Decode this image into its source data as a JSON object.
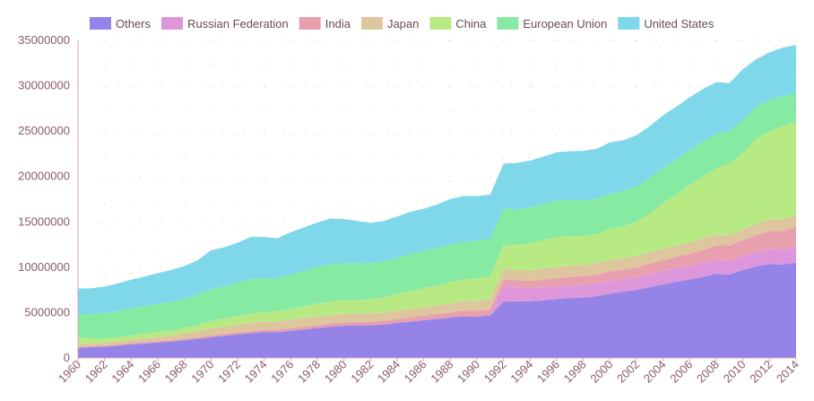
{
  "chart_data": {
    "type": "area",
    "stacked": true,
    "legend_position": "top",
    "grid": true,
    "ylim": [
      0,
      35000000
    ],
    "y_ticks": [
      0,
      5000000,
      10000000,
      15000000,
      20000000,
      25000000,
      30000000,
      35000000
    ],
    "x_tick_labels": [
      "1960",
      "1962",
      "1964",
      "1966",
      "1968",
      "1970",
      "1972",
      "1974",
      "1976",
      "1978",
      "1980",
      "1982",
      "1984",
      "1986",
      "1988",
      "1990",
      "1992",
      "1994",
      "1996",
      "1998",
      "2000",
      "2002",
      "2004",
      "2006",
      "2008",
      "2010",
      "2012",
      "2014"
    ],
    "x": [
      1960,
      1961,
      1962,
      1963,
      1964,
      1965,
      1966,
      1967,
      1968,
      1969,
      1970,
      1971,
      1972,
      1973,
      1974,
      1975,
      1976,
      1977,
      1978,
      1979,
      1980,
      1981,
      1982,
      1983,
      1984,
      1985,
      1986,
      1987,
      1988,
      1989,
      1990,
      1991,
      1992,
      1993,
      1994,
      1995,
      1996,
      1997,
      1998,
      1999,
      2000,
      2001,
      2002,
      2003,
      2004,
      2005,
      2006,
      2007,
      2008,
      2009,
      2010,
      2011,
      2012,
      2013,
      2014
    ],
    "series": [
      {
        "name": "Others",
        "color": "#9583e8",
        "pattern": false,
        "values": [
          1100000,
          1200000,
          1250000,
          1350000,
          1500000,
          1600000,
          1700000,
          1800000,
          1950000,
          2100000,
          2300000,
          2450000,
          2600000,
          2750000,
          2850000,
          2850000,
          3000000,
          3150000,
          3300000,
          3450000,
          3550000,
          3600000,
          3600000,
          3700000,
          3850000,
          4000000,
          4150000,
          4300000,
          4450000,
          4600000,
          4550000,
          4700000,
          6200000,
          6250000,
          6250000,
          6350000,
          6500000,
          6600000,
          6650000,
          6800000,
          7100000,
          7300000,
          7500000,
          7800000,
          8100000,
          8400000,
          8650000,
          8950000,
          9300000,
          9200000,
          9700000,
          10100000,
          10350000,
          10300000,
          10500000
        ]
      },
      {
        "name": "Russian Federation",
        "color": "#d98ad6",
        "pattern": true,
        "values": [
          0,
          0,
          0,
          0,
          0,
          0,
          0,
          0,
          0,
          0,
          0,
          0,
          0,
          0,
          0,
          0,
          0,
          0,
          0,
          0,
          0,
          0,
          0,
          0,
          0,
          0,
          0,
          0,
          0,
          0,
          0,
          0,
          1750000,
          1550000,
          1450000,
          1450000,
          1400000,
          1400000,
          1400000,
          1400000,
          1400000,
          1400000,
          1400000,
          1450000,
          1500000,
          1500000,
          1500000,
          1550000,
          1550000,
          1500000,
          1550000,
          1600000,
          1650000,
          1650000,
          1700000
        ]
      },
      {
        "name": "India",
        "color": "#e8a0ae",
        "pattern": false,
        "values": [
          100000,
          110000,
          120000,
          130000,
          140000,
          150000,
          160000,
          170000,
          180000,
          190000,
          200000,
          210000,
          220000,
          230000,
          250000,
          270000,
          290000,
          300000,
          310000,
          330000,
          350000,
          370000,
          390000,
          410000,
          440000,
          470000,
          500000,
          530000,
          560000,
          600000,
          650000,
          690000,
          720000,
          760000,
          800000,
          850000,
          900000,
          940000,
          980000,
          1000000,
          1030000,
          1050000,
          1080000,
          1120000,
          1180000,
          1240000,
          1320000,
          1420000,
          1550000,
          1720000,
          1750000,
          1850000,
          2000000,
          2050000,
          2200000
        ]
      },
      {
        "name": "Japan",
        "color": "#d9bf92",
        "pattern": true,
        "values": [
          250000,
          270000,
          300000,
          340000,
          390000,
          420000,
          450000,
          520000,
          600000,
          680000,
          760000,
          790000,
          830000,
          900000,
          930000,
          880000,
          920000,
          950000,
          970000,
          930000,
          950000,
          930000,
          900000,
          880000,
          950000,
          940000,
          940000,
          930000,
          1000000,
          1050000,
          1100000,
          1120000,
          1150000,
          1130000,
          1150000,
          1200000,
          1220000,
          1240000,
          1200000,
          1250000,
          1270000,
          1240000,
          1260000,
          1270000,
          1270000,
          1260000,
          1250000,
          1270000,
          1200000,
          1120000,
          1180000,
          1220000,
          1280000,
          1300000,
          1250000
        ]
      },
      {
        "name": "China",
        "color": "#b8ea84",
        "pattern": false,
        "values": [
          800000,
          550000,
          450000,
          450000,
          450000,
          500000,
          550000,
          550000,
          550000,
          650000,
          800000,
          900000,
          950000,
          1000000,
          1000000,
          1150000,
          1150000,
          1300000,
          1450000,
          1500000,
          1500000,
          1450000,
          1600000,
          1700000,
          1800000,
          1950000,
          2100000,
          2200000,
          2350000,
          2400000,
          2450000,
          2550000,
          2650000,
          2750000,
          2950000,
          3150000,
          3300000,
          3250000,
          3200000,
          3200000,
          3400000,
          3500000,
          3800000,
          4300000,
          5000000,
          5600000,
          6300000,
          6800000,
          7300000,
          7900000,
          8400000,
          9400000,
          9700000,
          10200000,
          10300000
        ]
      },
      {
        "name": "European Union",
        "color": "#86eaa2",
        "pattern": false,
        "values": [
          2600000,
          2700000,
          2800000,
          2900000,
          3000000,
          3050000,
          3100000,
          3150000,
          3200000,
          3350000,
          3500000,
          3550000,
          3650000,
          3800000,
          3750000,
          3650000,
          3850000,
          3900000,
          4000000,
          4100000,
          4100000,
          4050000,
          3950000,
          3950000,
          4000000,
          4100000,
          4100000,
          4150000,
          4150000,
          4150000,
          4150000,
          4100000,
          4000000,
          3950000,
          3950000,
          3950000,
          4000000,
          3950000,
          3950000,
          3900000,
          3900000,
          3900000,
          3850000,
          3900000,
          3900000,
          3900000,
          3900000,
          3850000,
          3800000,
          3550000,
          3650000,
          3500000,
          3450000,
          3350000,
          3250000
        ]
      },
      {
        "name": "United States",
        "color": "#7fd8ea",
        "pattern": false,
        "values": [
          2800000,
          2850000,
          2950000,
          3050000,
          3150000,
          3250000,
          3400000,
          3500000,
          3650000,
          3800000,
          4300000,
          4300000,
          4450000,
          4650000,
          4550000,
          4400000,
          4650000,
          4800000,
          4900000,
          5050000,
          4850000,
          4700000,
          4450000,
          4450000,
          4550000,
          4650000,
          4650000,
          4800000,
          5000000,
          5050000,
          4950000,
          4850000,
          4950000,
          5100000,
          5200000,
          5250000,
          5350000,
          5400000,
          5450000,
          5500000,
          5650000,
          5600000,
          5650000,
          5700000,
          5800000,
          5800000,
          5800000,
          5800000,
          5700000,
          5300000,
          5600000,
          5250000,
          5250000,
          5350000,
          5300000
        ]
      }
    ]
  }
}
